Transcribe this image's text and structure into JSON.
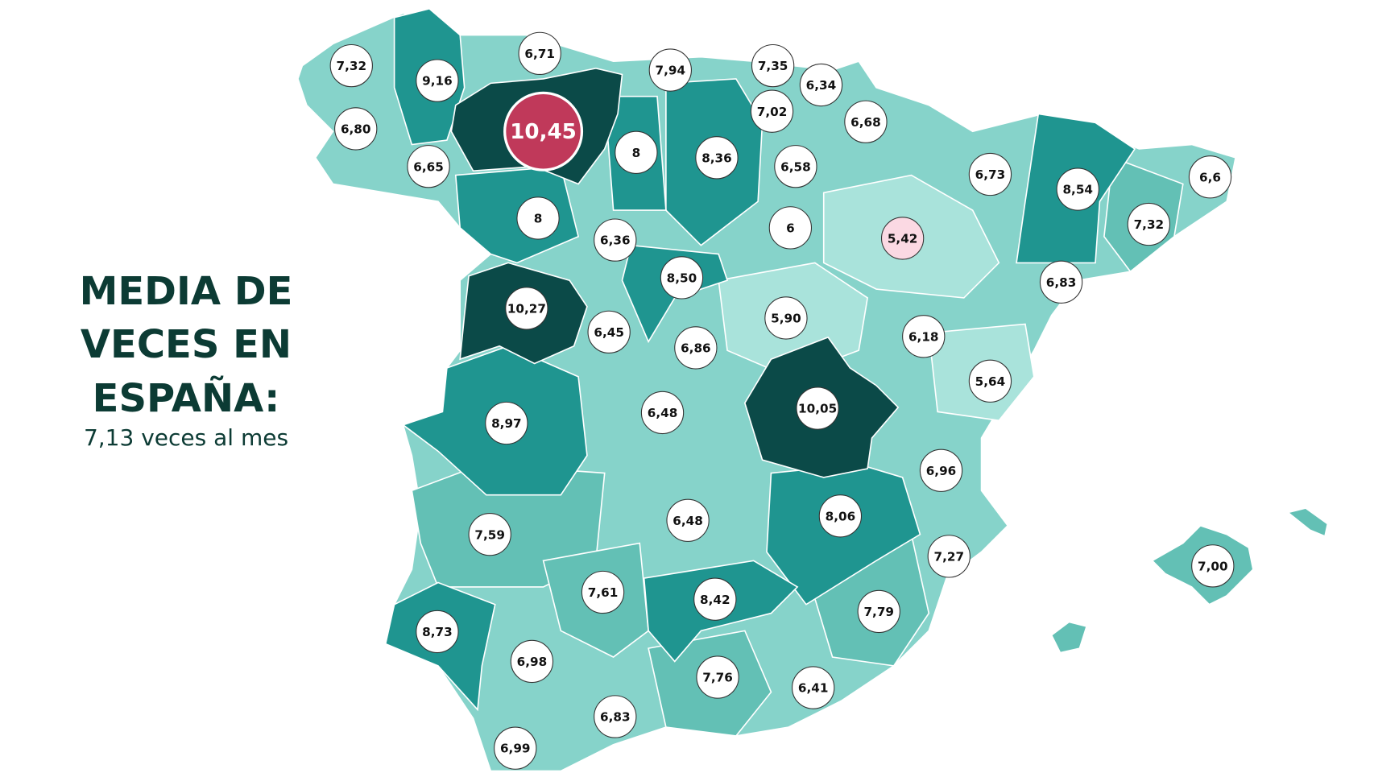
{
  "title": {
    "lines": [
      "MEDIA DE",
      "VECES EN",
      "ESPAÑA:"
    ],
    "subtitle": "7,13 veces al mes"
  },
  "regions": [
    {
      "label": "7,32"
    },
    {
      "label": "6,71"
    },
    {
      "label": "9,16"
    },
    {
      "label": "7,94"
    },
    {
      "label": "7,35"
    },
    {
      "label": "6,34"
    },
    {
      "label": "10,45"
    },
    {
      "label": "6,80"
    },
    {
      "label": "7,02"
    },
    {
      "label": "6,68"
    },
    {
      "label": "8"
    },
    {
      "label": "8,36"
    },
    {
      "label": "6,65"
    },
    {
      "label": "6,58"
    },
    {
      "label": "6,73"
    },
    {
      "label": "8,54"
    },
    {
      "label": "6,6"
    },
    {
      "label": "8"
    },
    {
      "label": "6,36"
    },
    {
      "label": "6"
    },
    {
      "label": "5,42"
    },
    {
      "label": "7,32"
    },
    {
      "label": "8,50"
    },
    {
      "label": "6,83"
    },
    {
      "label": "10,27"
    },
    {
      "label": "6,45"
    },
    {
      "label": "5,90"
    },
    {
      "label": "6,18"
    },
    {
      "label": "6,86"
    },
    {
      "label": "5,64"
    },
    {
      "label": "10,05"
    },
    {
      "label": "6,48"
    },
    {
      "label": "8,97"
    },
    {
      "label": "6,96"
    },
    {
      "label": "6,48"
    },
    {
      "label": "8,06"
    },
    {
      "label": "7,59"
    },
    {
      "label": "7,27"
    },
    {
      "label": "7,00"
    },
    {
      "label": "7,61"
    },
    {
      "label": "8,42"
    },
    {
      "label": "7,79"
    },
    {
      "label": "8,73"
    },
    {
      "label": "6,98"
    },
    {
      "label": "7,76"
    },
    {
      "label": "6,41"
    },
    {
      "label": "6,83"
    },
    {
      "label": "6,99"
    }
  ]
}
